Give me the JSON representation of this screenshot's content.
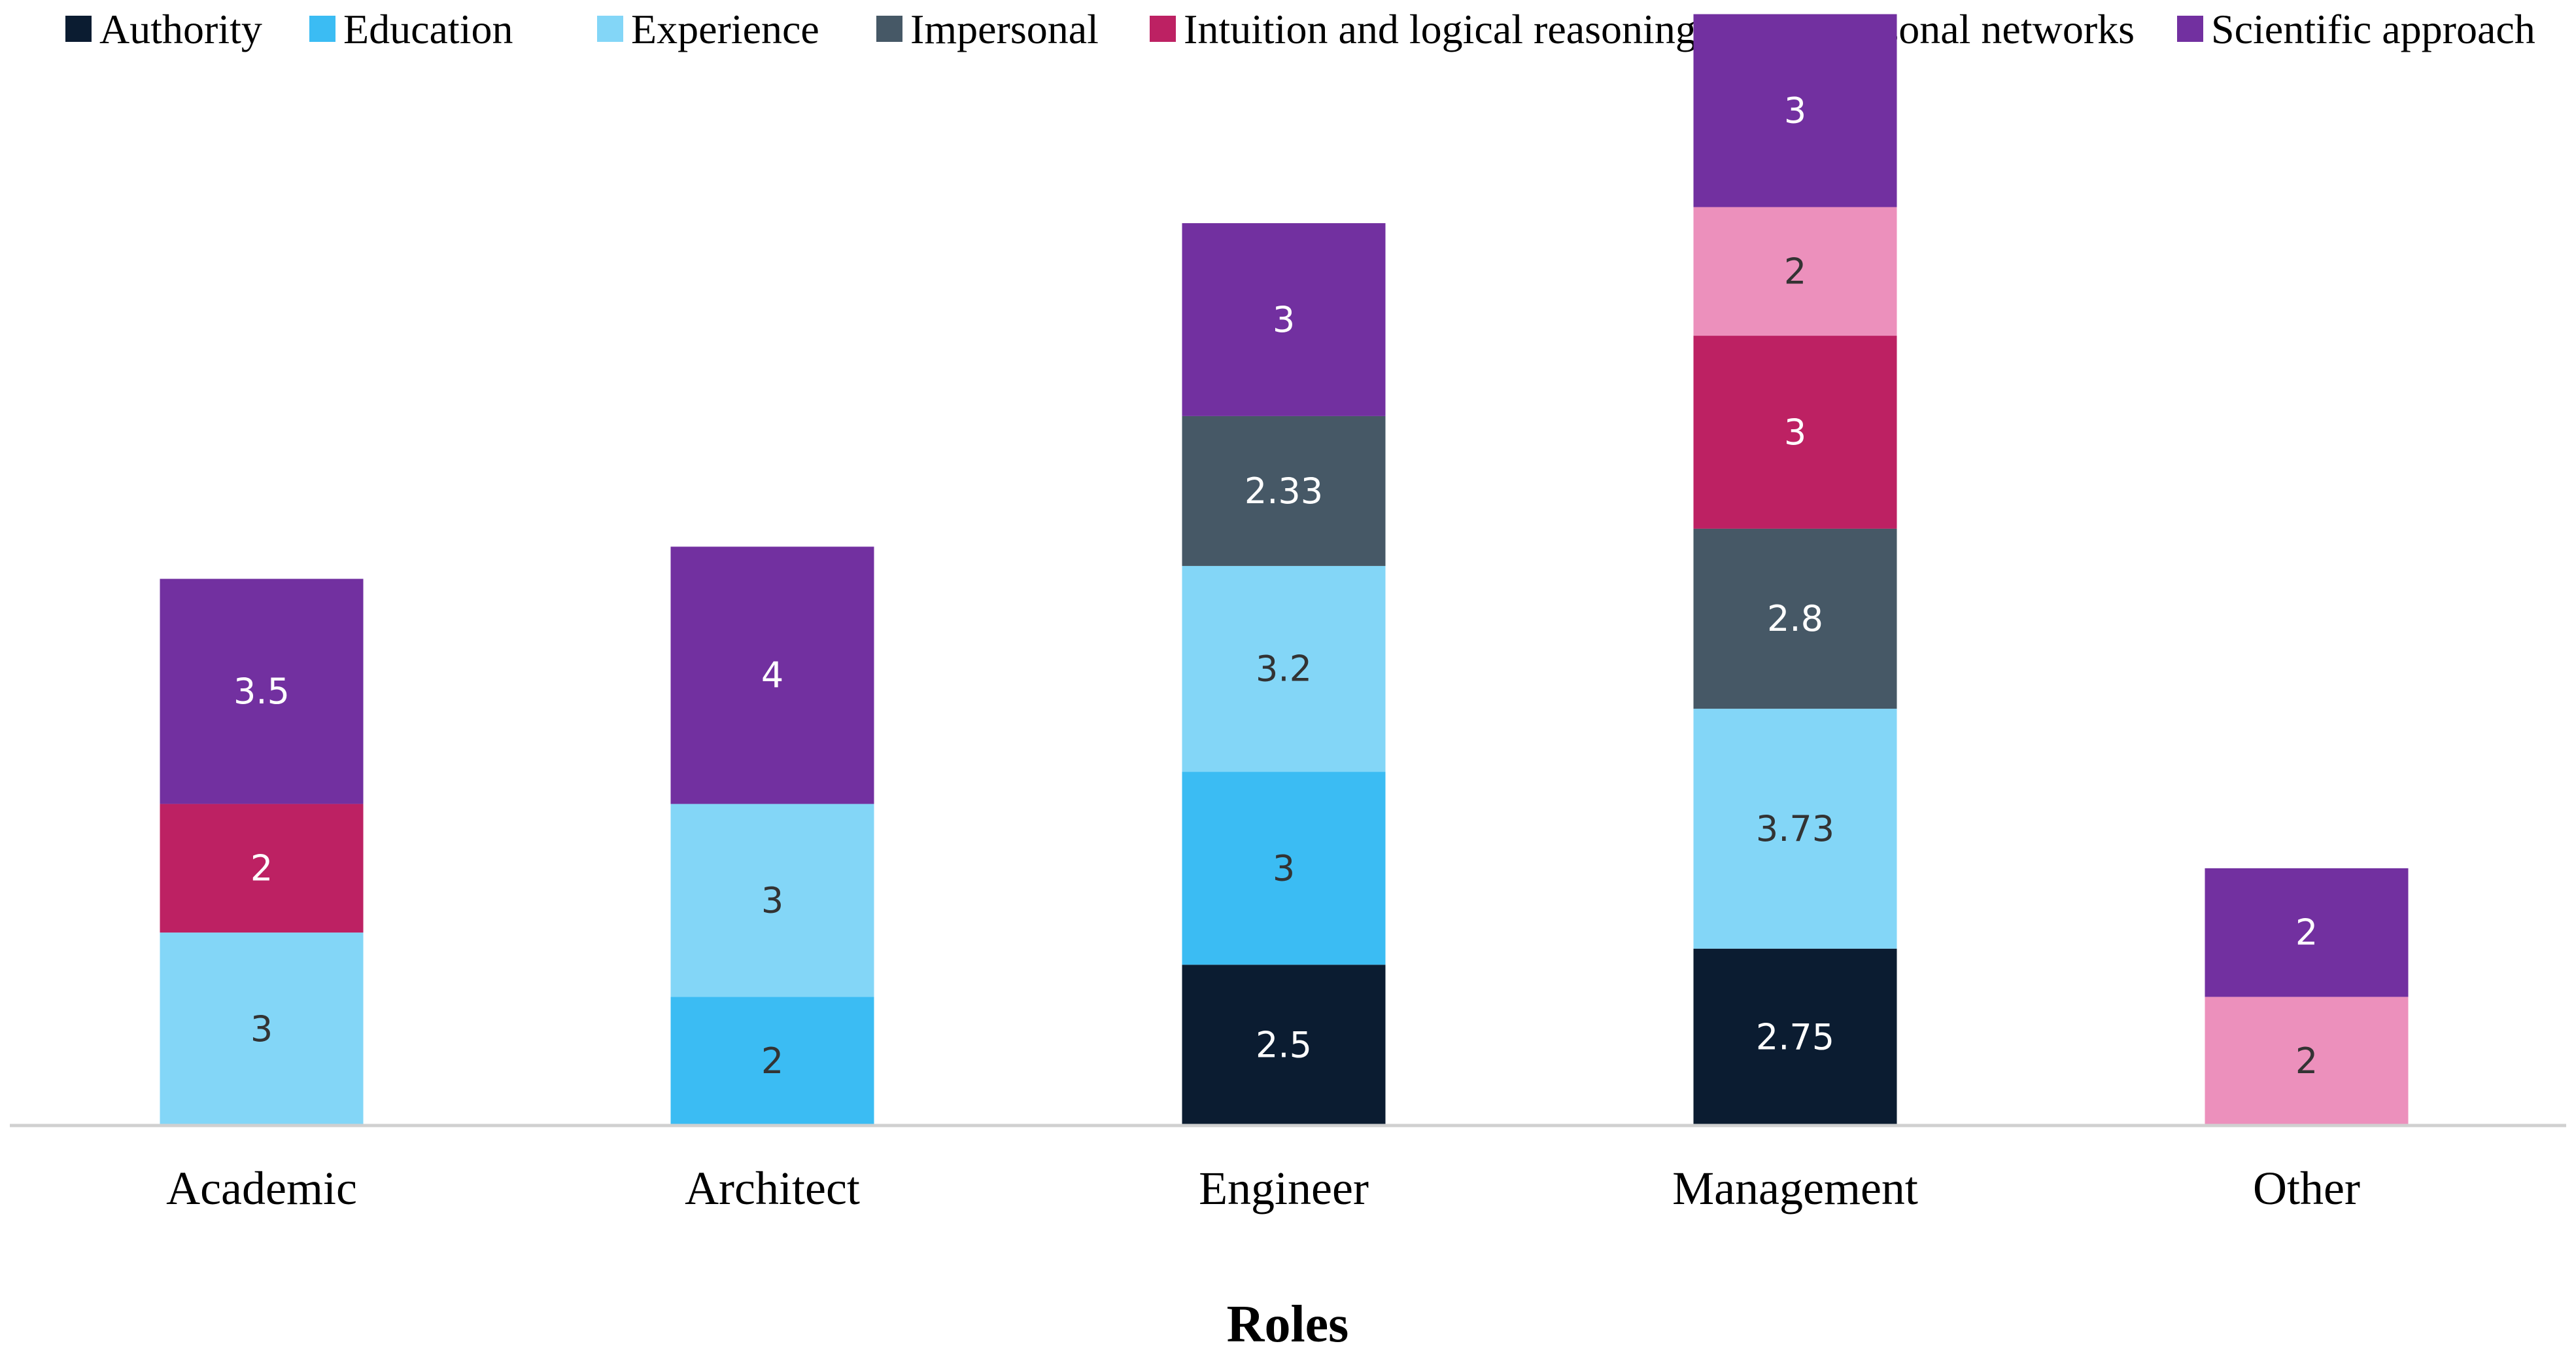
{
  "chart_data": {
    "type": "bar",
    "stacked": true,
    "title": "",
    "xlabel": "Roles",
    "ylabel": "",
    "ylim": [
      0,
      17.5
    ],
    "grid": false,
    "legend_position": "top",
    "categories": [
      "Academic",
      "Architect",
      "Engineer",
      "Management",
      "Other"
    ],
    "series": [
      {
        "name": "Authority",
        "color": "#0b1c31",
        "label_color": "#ffffff",
        "values": [
          null,
          null,
          2.5,
          2.75,
          null
        ]
      },
      {
        "name": "Education",
        "color": "#3bbcf3",
        "label_color": "#333333",
        "values": [
          null,
          2,
          3,
          null,
          null
        ]
      },
      {
        "name": "Experience",
        "color": "#83d6f7",
        "label_color": "#333333",
        "values": [
          3,
          3,
          3.2,
          3.73,
          null
        ]
      },
      {
        "name": "Impersonal",
        "color": "#465866",
        "label_color": "#ffffff",
        "values": [
          null,
          null,
          2.33,
          2.8,
          null
        ]
      },
      {
        "name": "Intuition and logical reasoning",
        "color": "#bd2163",
        "label_color": "#ffffff",
        "values": [
          2,
          null,
          null,
          3,
          null
        ]
      },
      {
        "name": "Personal networks",
        "color": "#ec90bc",
        "label_color": "#333333",
        "values": [
          null,
          null,
          null,
          2,
          2
        ]
      },
      {
        "name": "Scientific approach",
        "color": "#7230a0",
        "label_color": "#ffffff",
        "values": [
          3.5,
          4,
          3,
          3,
          2
        ]
      }
    ]
  }
}
